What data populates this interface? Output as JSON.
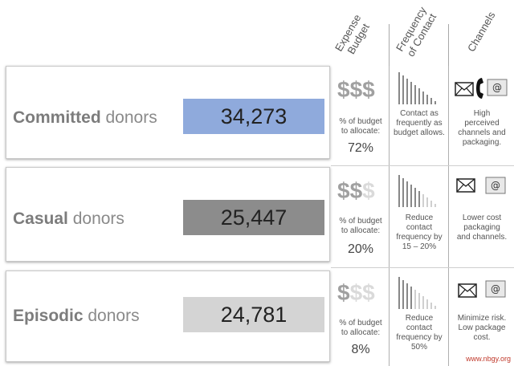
{
  "headers": {
    "budget": [
      "Expense",
      "Budget"
    ],
    "frequency": [
      "Frequency",
      "of Contact"
    ],
    "channels": "Channels"
  },
  "rows": [
    {
      "label_bold": "Committed",
      "label_rest": " donors",
      "value": "34,273",
      "bar_color": "#8faadc",
      "dollars_filled": 3,
      "budget_text": [
        "% of budget",
        "to allocate:"
      ],
      "budget_pct": "72%",
      "frequency_text": [
        "Contact as",
        "frequently as",
        "budget allows."
      ],
      "channels_text": [
        "High",
        "perceived",
        "channels and",
        "packaging."
      ],
      "channel_icons": [
        "envelope-icon",
        "phone-icon",
        "email-icon"
      ]
    },
    {
      "label_bold": "Casual",
      "label_rest": " donors",
      "value": "25,447",
      "bar_color": "#8c8c8c",
      "dollars_filled": 2,
      "budget_text": [
        "% of budget",
        "to allocate:"
      ],
      "budget_pct": "20%",
      "frequency_text": [
        "Reduce",
        "contact",
        "frequency by",
        "15 – 20%"
      ],
      "channels_text": [
        "Lower cost",
        "packaging",
        "and channels."
      ],
      "channel_icons": [
        "envelope-icon",
        "email-icon"
      ]
    },
    {
      "label_bold": "Episodic",
      "label_rest": " donors",
      "value": "24,781",
      "bar_color": "#d4d4d4",
      "dollars_filled": 1,
      "budget_text": [
        "% of budget",
        "to allocate:"
      ],
      "budget_pct": "8%",
      "frequency_text": [
        "Reduce",
        "contact",
        "frequency by",
        "50%"
      ],
      "channels_text": [
        "Minimize risk.",
        "Low package",
        "cost."
      ],
      "channel_icons": [
        "envelope-icon",
        "email-icon"
      ]
    }
  ],
  "watermark": "www.nbgy.org",
  "colors": {
    "dollar_dark": "#a0a0a0",
    "dollar_light": "#dadada"
  }
}
